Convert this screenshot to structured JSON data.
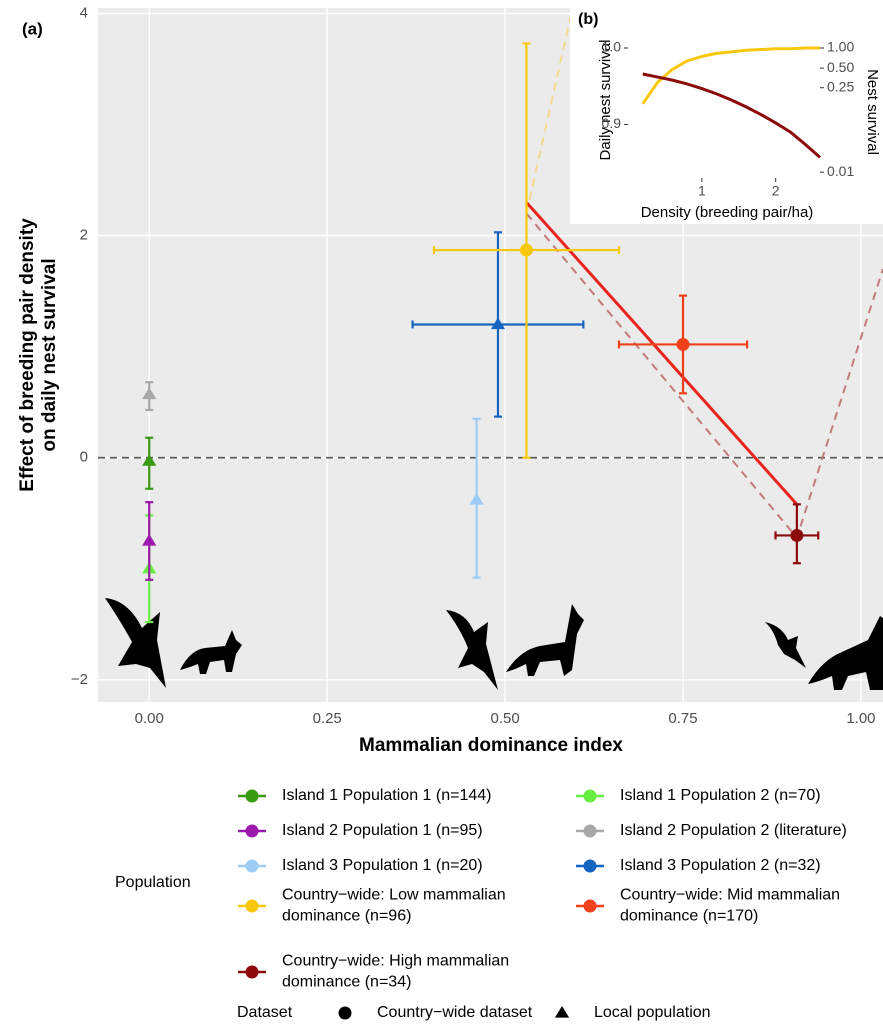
{
  "chart_data": [
    {
      "type": "scatter",
      "panel_label": "(a)",
      "x_label": "Mammalian dominance index",
      "y_label": [
        "Effect of breeding pair density",
        "on daily nest survival"
      ],
      "xlim": [
        -0.072,
        1.031
      ],
      "ylim": [
        -2.2,
        4.05
      ],
      "xticks": [
        {
          "value": 0,
          "label": "0.00"
        },
        {
          "value": 0.25,
          "label": "0.25"
        },
        {
          "value": 0.5,
          "label": "0.50"
        },
        {
          "value": 0.75,
          "label": "0.75"
        },
        {
          "value": 1,
          "label": "1.00"
        }
      ],
      "yticks": [
        {
          "value": -2,
          "label": "−2"
        },
        0,
        2,
        4
      ],
      "grid": true,
      "hline": 0,
      "legend_title": "Population",
      "shape_legend_title": "Dataset",
      "shapes": [
        {
          "name": "Country−wide dataset",
          "marker": "circle"
        },
        {
          "name": "Local population",
          "marker": "triangle"
        }
      ],
      "series": [
        {
          "name": [
            "Island 1 Population 1 (n=144)"
          ],
          "color": "#3a9a14",
          "marker": "triangle",
          "x": 0,
          "y": -0.03,
          "ylow": -0.28,
          "yhigh": 0.18
        },
        {
          "name": [
            "Island 1 Population 2 (n=70)"
          ],
          "color": "#66ee44",
          "marker": "triangle",
          "x": 0,
          "y": -1.0,
          "ylow": -1.48,
          "yhigh": -0.52
        },
        {
          "name": [
            "Island 2 Population 1 (n=95)"
          ],
          "color": "#9b1aab",
          "marker": "triangle",
          "x": 0,
          "y": -0.75,
          "ylow": -1.1,
          "yhigh": -0.4
        },
        {
          "name": [
            "Island 2 Population 2 (literature)"
          ],
          "color": "#a8a8a8",
          "marker": "triangle",
          "x": 0,
          "y": 0.57,
          "ylow": 0.43,
          "yhigh": 0.68
        },
        {
          "name": [
            "Island 3 Population 1 (n=20)"
          ],
          "color": "#9dcdf6",
          "marker": "triangle",
          "x": 0.46,
          "y": -0.38,
          "ylow": -1.08,
          "yhigh": 0.35
        },
        {
          "name": [
            "Island 3 Population 2 (n=32)"
          ],
          "color": "#1565c0",
          "marker": "triangle",
          "x": 0.49,
          "y": 1.2,
          "ylow": 0.37,
          "yhigh": 2.03,
          "xlow": 0.37,
          "xhigh": 0.61
        },
        {
          "name": [
            "Country−wide: Low mammalian",
            "dominance (n=96)"
          ],
          "color": "#f9c80e",
          "marker": "circle",
          "x": 0.53,
          "y": 1.87,
          "ylow": 0,
          "yhigh": 3.73,
          "xlow": 0.4,
          "xhigh": 0.66
        },
        {
          "name": [
            "Country−wide: Mid mammalian",
            "dominance (n=170)"
          ],
          "color": "#f0401a",
          "marker": "circle",
          "x": 0.75,
          "y": 1.02,
          "ylow": 0.58,
          "yhigh": 1.46,
          "xlow": 0.66,
          "xhigh": 0.84
        },
        {
          "name": [
            "Country−wide: High mammalian",
            "dominance (n=34)"
          ],
          "color": "#8b0a0a",
          "marker": "circle",
          "x": 0.91,
          "y": -0.7,
          "ylow": -0.95,
          "yhigh": -0.42,
          "xlow": 0.88,
          "xhigh": 0.94
        }
      ],
      "lines": [
        {
          "color": "#f5d98a",
          "style": "dashed",
          "x": [
            0.53,
            0.6
          ],
          "y": [
            2.2,
            4.2
          ]
        },
        {
          "color": "#c47a7a",
          "style": "dashed",
          "x": [
            0.53,
            0.91,
            1.031
          ],
          "y": [
            2.2,
            -0.72,
            1.7
          ]
        },
        {
          "color": "#e8251d",
          "style": "solid",
          "x": [
            0.53,
            0.91
          ],
          "y": [
            2.3,
            -0.42
          ]
        }
      ]
    },
    {
      "type": "line",
      "panel_label": "(b)",
      "x_label": "Density (breeding pair/ha)",
      "y_label": "Daily nest survival",
      "y2_label": "Nest survival",
      "xlim": [
        0,
        2.6
      ],
      "ylim": [
        0.83,
        1.034
      ],
      "xticks": [
        1,
        2
      ],
      "yticks": [
        0.9,
        {
          "value": 1,
          "label": "1.0"
        }
      ],
      "y2ticks": [
        {
          "value": 1,
          "label": "1.00"
        },
        {
          "value": 0.5,
          "label": "0.50"
        },
        0.25,
        0.01
      ],
      "y2_power": 26,
      "grid": false,
      "x": [
        0.2,
        0.4,
        0.6,
        0.8,
        1.0,
        1.2,
        1.4,
        1.6,
        1.8,
        2.0,
        2.2,
        2.4,
        2.6
      ],
      "series": [
        {
          "color": "#f9c80e",
          "values": [
            0.927,
            0.955,
            0.972,
            0.983,
            0.989,
            0.993,
            0.995,
            0.997,
            0.998,
            0.999,
            0.999,
            1.0,
            1.0
          ]
        },
        {
          "color": "#8b0a0a",
          "values": [
            0.966,
            0.962,
            0.958,
            0.953,
            0.947,
            0.94,
            0.932,
            0.923,
            0.913,
            0.902,
            0.89,
            0.874,
            0.857
          ]
        }
      ]
    }
  ]
}
